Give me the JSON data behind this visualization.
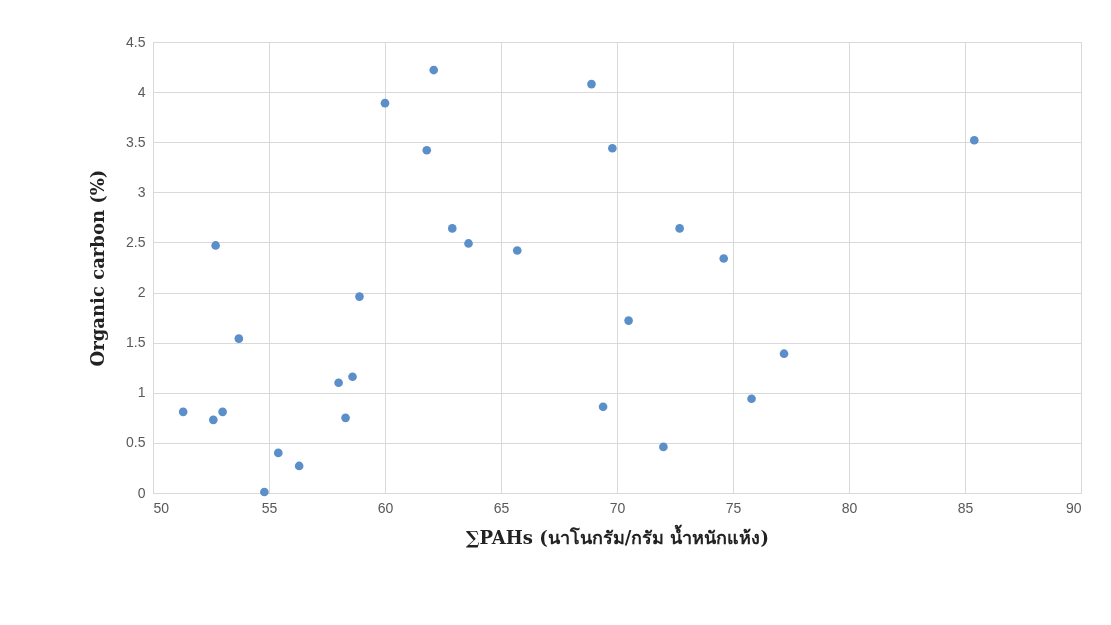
{
  "chart_data": {
    "type": "scatter",
    "xlabel": "∑PAHs (นาโนกรัม/กรัม น้ำหนักแห้ง)",
    "ylabel": "Organic carbon (%)",
    "x": [
      62.1,
      60.0,
      61.8,
      62.9,
      63.6,
      52.7,
      58.9,
      53.7,
      58.6,
      58.0,
      58.3,
      51.3,
      53.0,
      52.6,
      55.4,
      56.3,
      54.8,
      68.9,
      69.8,
      65.7,
      72.7,
      74.6,
      70.5,
      69.4,
      72.0,
      75.8,
      77.2,
      85.4
    ],
    "values": [
      4.22,
      3.89,
      3.42,
      2.64,
      2.49,
      2.47,
      1.96,
      1.54,
      1.16,
      1.1,
      0.75,
      0.81,
      0.81,
      0.73,
      0.4,
      0.27,
      0.01,
      4.08,
      3.44,
      2.42,
      2.64,
      2.34,
      1.72,
      0.86,
      0.46,
      0.94,
      1.39,
      3.52
    ],
    "color": "#5b8fc9",
    "marker": "circle",
    "xlim": [
      50,
      90
    ],
    "xticks": [
      50,
      55,
      60,
      65,
      70,
      75,
      80,
      85,
      90
    ],
    "ylim": [
      0,
      4.5
    ],
    "yticks": [
      0,
      0.5,
      1,
      1.5,
      2,
      2.5,
      3,
      3.5,
      4,
      4.5
    ],
    "grid": true
  }
}
